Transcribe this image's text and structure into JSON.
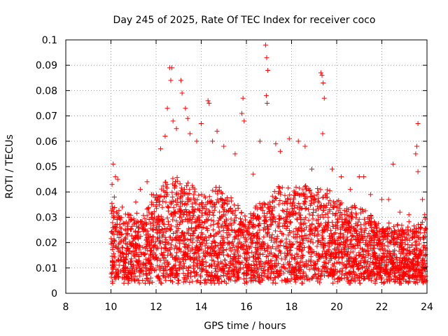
{
  "chart_data": {
    "type": "scatter",
    "title": "Day 245 of 2025, Rate Of TEC Index for receiver coco",
    "xlabel": "GPS time / hours",
    "ylabel": "ROTI / TECUs",
    "xlim": [
      8,
      24
    ],
    "ylim": [
      0,
      0.1
    ],
    "x_ticks": [
      "8",
      "10",
      "12",
      "14",
      "16",
      "18",
      "20",
      "22",
      "24"
    ],
    "y_ticks": [
      "0",
      "0.01",
      "0.02",
      "0.03",
      "0.04",
      "0.05",
      "0.06",
      "0.07",
      "0.08",
      "0.09",
      "0.1"
    ],
    "grid": true,
    "marker": "plus",
    "colors": {
      "points": "#ff0000",
      "grid": "#a0a0a0",
      "frame": "#000000"
    },
    "series": [
      {
        "points": [
          [
            10.05,
            0.043
          ],
          [
            10.1,
            0.051
          ],
          [
            10.15,
            0.038
          ],
          [
            10.2,
            0.046
          ],
          [
            10.3,
            0.045
          ],
          [
            10.25,
            0.032
          ],
          [
            10.5,
            0.034
          ],
          [
            10.8,
            0.031
          ],
          [
            11.1,
            0.036
          ],
          [
            11.3,
            0.041
          ],
          [
            11.6,
            0.044
          ],
          [
            11.8,
            0.039
          ],
          [
            12.2,
            0.057
          ],
          [
            12.4,
            0.062
          ],
          [
            12.5,
            0.073
          ],
          [
            12.6,
            0.089
          ],
          [
            12.7,
            0.089
          ],
          [
            12.65,
            0.084
          ],
          [
            12.75,
            0.068
          ],
          [
            12.9,
            0.065
          ],
          [
            13.1,
            0.084
          ],
          [
            13.15,
            0.079
          ],
          [
            13.3,
            0.073
          ],
          [
            13.4,
            0.069
          ],
          [
            13.5,
            0.063
          ],
          [
            13.8,
            0.06
          ],
          [
            14.0,
            0.067
          ],
          [
            14.3,
            0.076
          ],
          [
            14.35,
            0.075
          ],
          [
            14.5,
            0.06
          ],
          [
            14.7,
            0.064
          ],
          [
            15.0,
            0.058
          ],
          [
            15.5,
            0.055
          ],
          [
            15.8,
            0.071
          ],
          [
            15.85,
            0.077
          ],
          [
            15.9,
            0.068
          ],
          [
            16.3,
            0.047
          ],
          [
            16.6,
            0.06
          ],
          [
            16.85,
            0.098
          ],
          [
            16.9,
            0.093
          ],
          [
            16.95,
            0.088
          ],
          [
            16.88,
            0.078
          ],
          [
            16.92,
            0.075
          ],
          [
            17.3,
            0.059
          ],
          [
            17.5,
            0.056
          ],
          [
            17.9,
            0.061
          ],
          [
            18.3,
            0.06
          ],
          [
            18.6,
            0.058
          ],
          [
            18.9,
            0.049
          ],
          [
            19.3,
            0.087
          ],
          [
            19.35,
            0.086
          ],
          [
            19.4,
            0.083
          ],
          [
            19.45,
            0.077
          ],
          [
            19.38,
            0.063
          ],
          [
            19.8,
            0.049
          ],
          [
            20.2,
            0.046
          ],
          [
            20.6,
            0.041
          ],
          [
            21.0,
            0.046
          ],
          [
            21.2,
            0.046
          ],
          [
            21.5,
            0.039
          ],
          [
            22.0,
            0.037
          ],
          [
            22.3,
            0.037
          ],
          [
            22.5,
            0.051
          ],
          [
            22.8,
            0.032
          ],
          [
            23.2,
            0.031
          ],
          [
            23.6,
            0.067
          ],
          [
            23.55,
            0.058
          ],
          [
            23.5,
            0.055
          ],
          [
            23.6,
            0.048
          ],
          [
            23.8,
            0.037
          ],
          [
            23.9,
            0.031
          ]
        ]
      }
    ]
  }
}
